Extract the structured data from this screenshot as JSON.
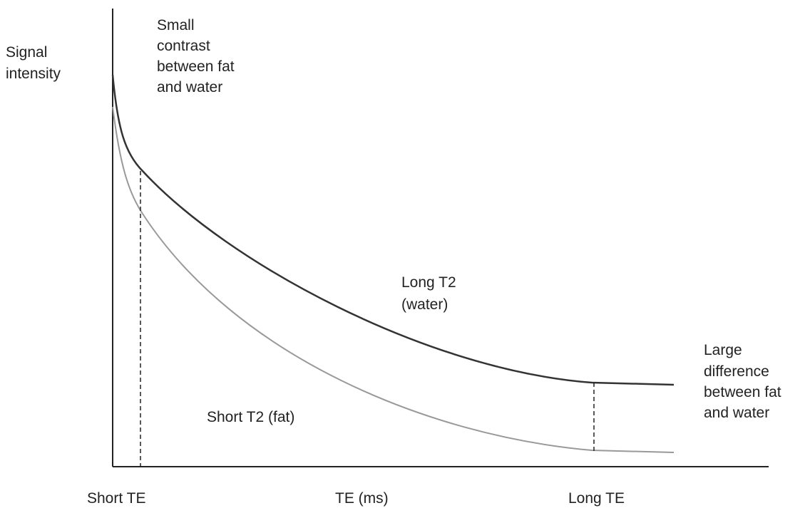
{
  "y_axis_label": [
    "Signal",
    "intensity"
  ],
  "x_axis_label": "TE (ms)",
  "short_te": "Short TE",
  "long_te": "Long TE",
  "top_note": [
    "Small",
    "contrast",
    "between fat",
    "and water"
  ],
  "water_label": [
    "Long T2",
    "(water)"
  ],
  "fat_label": "Short T2 (fat)",
  "right_note": [
    "Large",
    "difference",
    "between fat",
    "and water"
  ]
}
